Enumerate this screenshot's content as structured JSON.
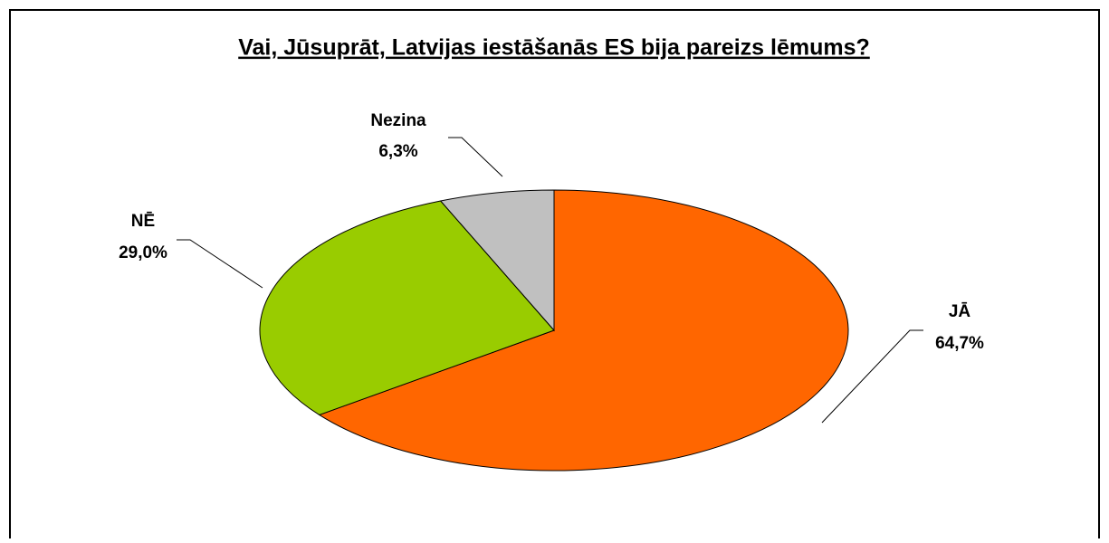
{
  "chart_data": {
    "type": "pie",
    "title": "Vai, Jūsuprāt, Latvijas iestāšanās ES bija pareizs lēmums?",
    "categories": [
      "JĀ",
      "NĒ",
      "Nezina"
    ],
    "values": [
      64.7,
      29.0,
      6.3
    ],
    "value_labels": [
      "64,7%",
      "29,0%",
      "6,3%"
    ],
    "colors": [
      "#ff6600",
      "#99cc00",
      "#c0c0c0"
    ]
  }
}
